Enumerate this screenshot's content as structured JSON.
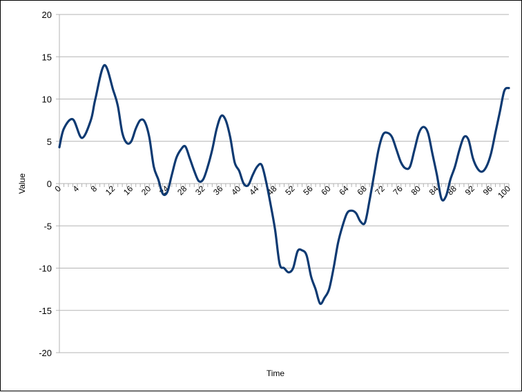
{
  "chart_data": {
    "type": "line",
    "title": "",
    "xlabel": "Time",
    "ylabel": "Value",
    "xlim": [
      0,
      100
    ],
    "ylim": [
      -20,
      20
    ],
    "y_ticks": [
      -20,
      -15,
      -10,
      -5,
      0,
      5,
      10,
      15,
      20
    ],
    "x_tick_labels": [
      0,
      4,
      8,
      12,
      16,
      20,
      24,
      28,
      32,
      36,
      40,
      44,
      48,
      52,
      56,
      60,
      64,
      68,
      72,
      76,
      80,
      84,
      88,
      92,
      96,
      100
    ],
    "grid": "horizontal",
    "legend": "none",
    "series_color": "#0e3a72",
    "series": [
      {
        "x": [
          0,
          1,
          3,
          5,
          7,
          8,
          10,
          12,
          13,
          14,
          15,
          16,
          17,
          18,
          19,
          20,
          21,
          22,
          23,
          24,
          25,
          26,
          27,
          28,
          29,
          30,
          31,
          32,
          33,
          34,
          35,
          36,
          37,
          38,
          39,
          40,
          41,
          42,
          43,
          44,
          45,
          46,
          47,
          48,
          49,
          50,
          51,
          52,
          53,
          54,
          55,
          56,
          57,
          58,
          59,
          60,
          61,
          62,
          63,
          64,
          65,
          66,
          67,
          68,
          69,
          70,
          71,
          72,
          73,
          74,
          75,
          76,
          77,
          78,
          79,
          80,
          81,
          82,
          83,
          84,
          85,
          86,
          87,
          88,
          89,
          90,
          91,
          92,
          93,
          94,
          95,
          96,
          97,
          98,
          99,
          100
        ],
        "values": [
          4.3,
          6.5,
          7.6,
          5.4,
          7.5,
          10,
          14,
          11,
          9.2,
          6,
          4.8,
          5,
          6.5,
          7.5,
          7.3,
          5.5,
          2,
          0.5,
          -1.2,
          -1,
          1,
          3,
          4,
          4.4,
          3,
          1.5,
          0.3,
          0.5,
          2,
          4,
          6.5,
          8,
          7.5,
          5.5,
          2.5,
          1.5,
          0,
          -0.2,
          1,
          2,
          2.2,
          0.2,
          -2.5,
          -5.5,
          -9.5,
          -10,
          -10.5,
          -10,
          -8,
          -7.9,
          -8.5,
          -11,
          -12.5,
          -14.2,
          -13.5,
          -12.5,
          -10,
          -7,
          -5,
          -3.5,
          -3.2,
          -3.5,
          -4.5,
          -4.6,
          -2,
          1,
          4,
          5.8,
          6,
          5.5,
          4,
          2.5,
          1.8,
          2,
          4,
          6,
          6.7,
          6,
          3.5,
          1,
          -1.8,
          -1.5,
          0.5,
          2,
          4,
          5.5,
          5.2,
          3,
          1.8,
          1.4,
          2,
          3.5,
          6,
          8.5,
          11,
          11.3
        ]
      }
    ]
  }
}
